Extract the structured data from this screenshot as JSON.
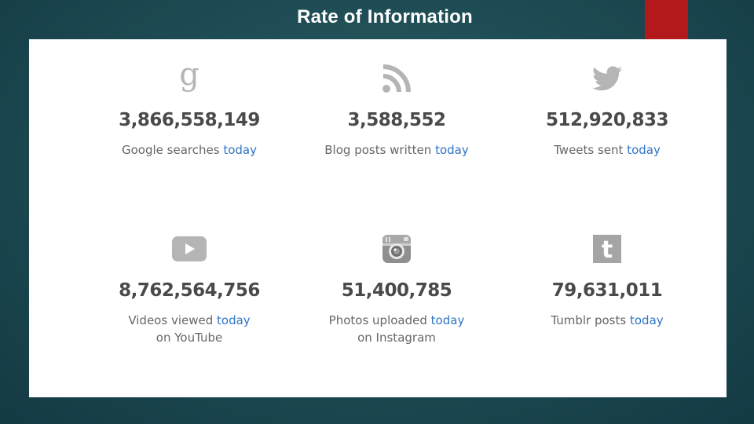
{
  "slide": {
    "title": "Rate of Information",
    "accent_color": "#b3191b",
    "number_color": "#4a4a4a",
    "link_color": "#2f74c6"
  },
  "stats": [
    {
      "icon": "google-icon",
      "number": "3,866,558,149",
      "label": "Google searches",
      "highlight": "today",
      "sub": ""
    },
    {
      "icon": "rss-icon",
      "number": "3,588,552",
      "label": "Blog posts written",
      "highlight": "today",
      "sub": ""
    },
    {
      "icon": "twitter-icon",
      "number": "512,920,833",
      "label": "Tweets sent",
      "highlight": "today",
      "sub": ""
    },
    {
      "icon": "youtube-icon",
      "number": "8,762,564,756",
      "label": "Videos viewed",
      "highlight": "today",
      "sub": "on YouTube"
    },
    {
      "icon": "instagram-icon",
      "number": "51,400,785",
      "label": "Photos uploaded",
      "highlight": "today",
      "sub": "on Instagram"
    },
    {
      "icon": "tumblr-icon",
      "number": "79,631,011",
      "label": "Tumblr posts",
      "highlight": "today",
      "sub": ""
    }
  ]
}
